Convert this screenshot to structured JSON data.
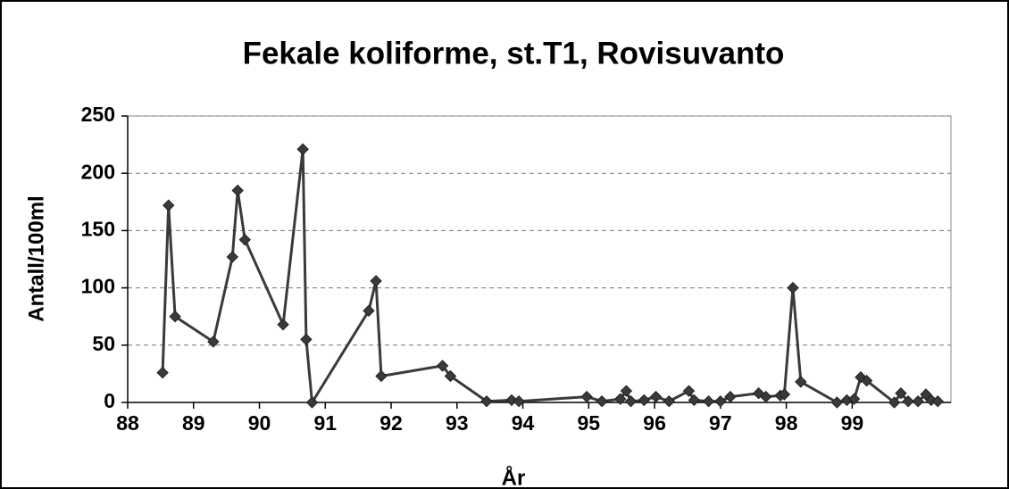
{
  "chart_data": {
    "type": "line",
    "title": "Fekale koliforme, st.T1, Rovisuvanto",
    "x_label": "År",
    "y_label": "Antall/100ml",
    "color": "#3a3a3a",
    "grid": true,
    "marker": "diamond",
    "x": [
      88.53,
      88.62,
      88.72,
      89.3,
      89.59,
      89.67,
      89.78,
      90.36,
      90.66,
      90.71,
      90.8,
      91.66,
      91.77,
      91.85,
      92.78,
      92.9,
      93.45,
      93.83,
      93.94,
      94.97,
      95.2,
      95.48,
      95.57,
      95.64,
      95.84,
      96.02,
      96.22,
      96.52,
      96.6,
      96.82,
      97.0,
      97.15,
      97.58,
      97.69,
      97.91,
      97.97,
      98.1,
      98.22,
      98.77,
      98.92,
      99.03,
      99.13,
      99.22,
      99.64,
      99.74,
      99.85,
      100.0,
      100.12,
      100.2,
      100.3
    ],
    "values": [
      26,
      172,
      75,
      53,
      127,
      185,
      142,
      68,
      221,
      55,
      0,
      80,
      106,
      23,
      32,
      23,
      1,
      2,
      1,
      5,
      1,
      3,
      10,
      1,
      2,
      5,
      1,
      10,
      2,
      1,
      1,
      5,
      8,
      5,
      6,
      7,
      100,
      18,
      0,
      2,
      3,
      22,
      19,
      0,
      8,
      1,
      1,
      7,
      2,
      1
    ],
    "xlim": [
      88,
      100.5
    ],
    "xticks": [
      88,
      89,
      90,
      91,
      92,
      93,
      94,
      95,
      96,
      97,
      98,
      99
    ],
    "ylim": [
      0,
      250
    ],
    "yticks": [
      0,
      50,
      100,
      150,
      200,
      250
    ]
  }
}
